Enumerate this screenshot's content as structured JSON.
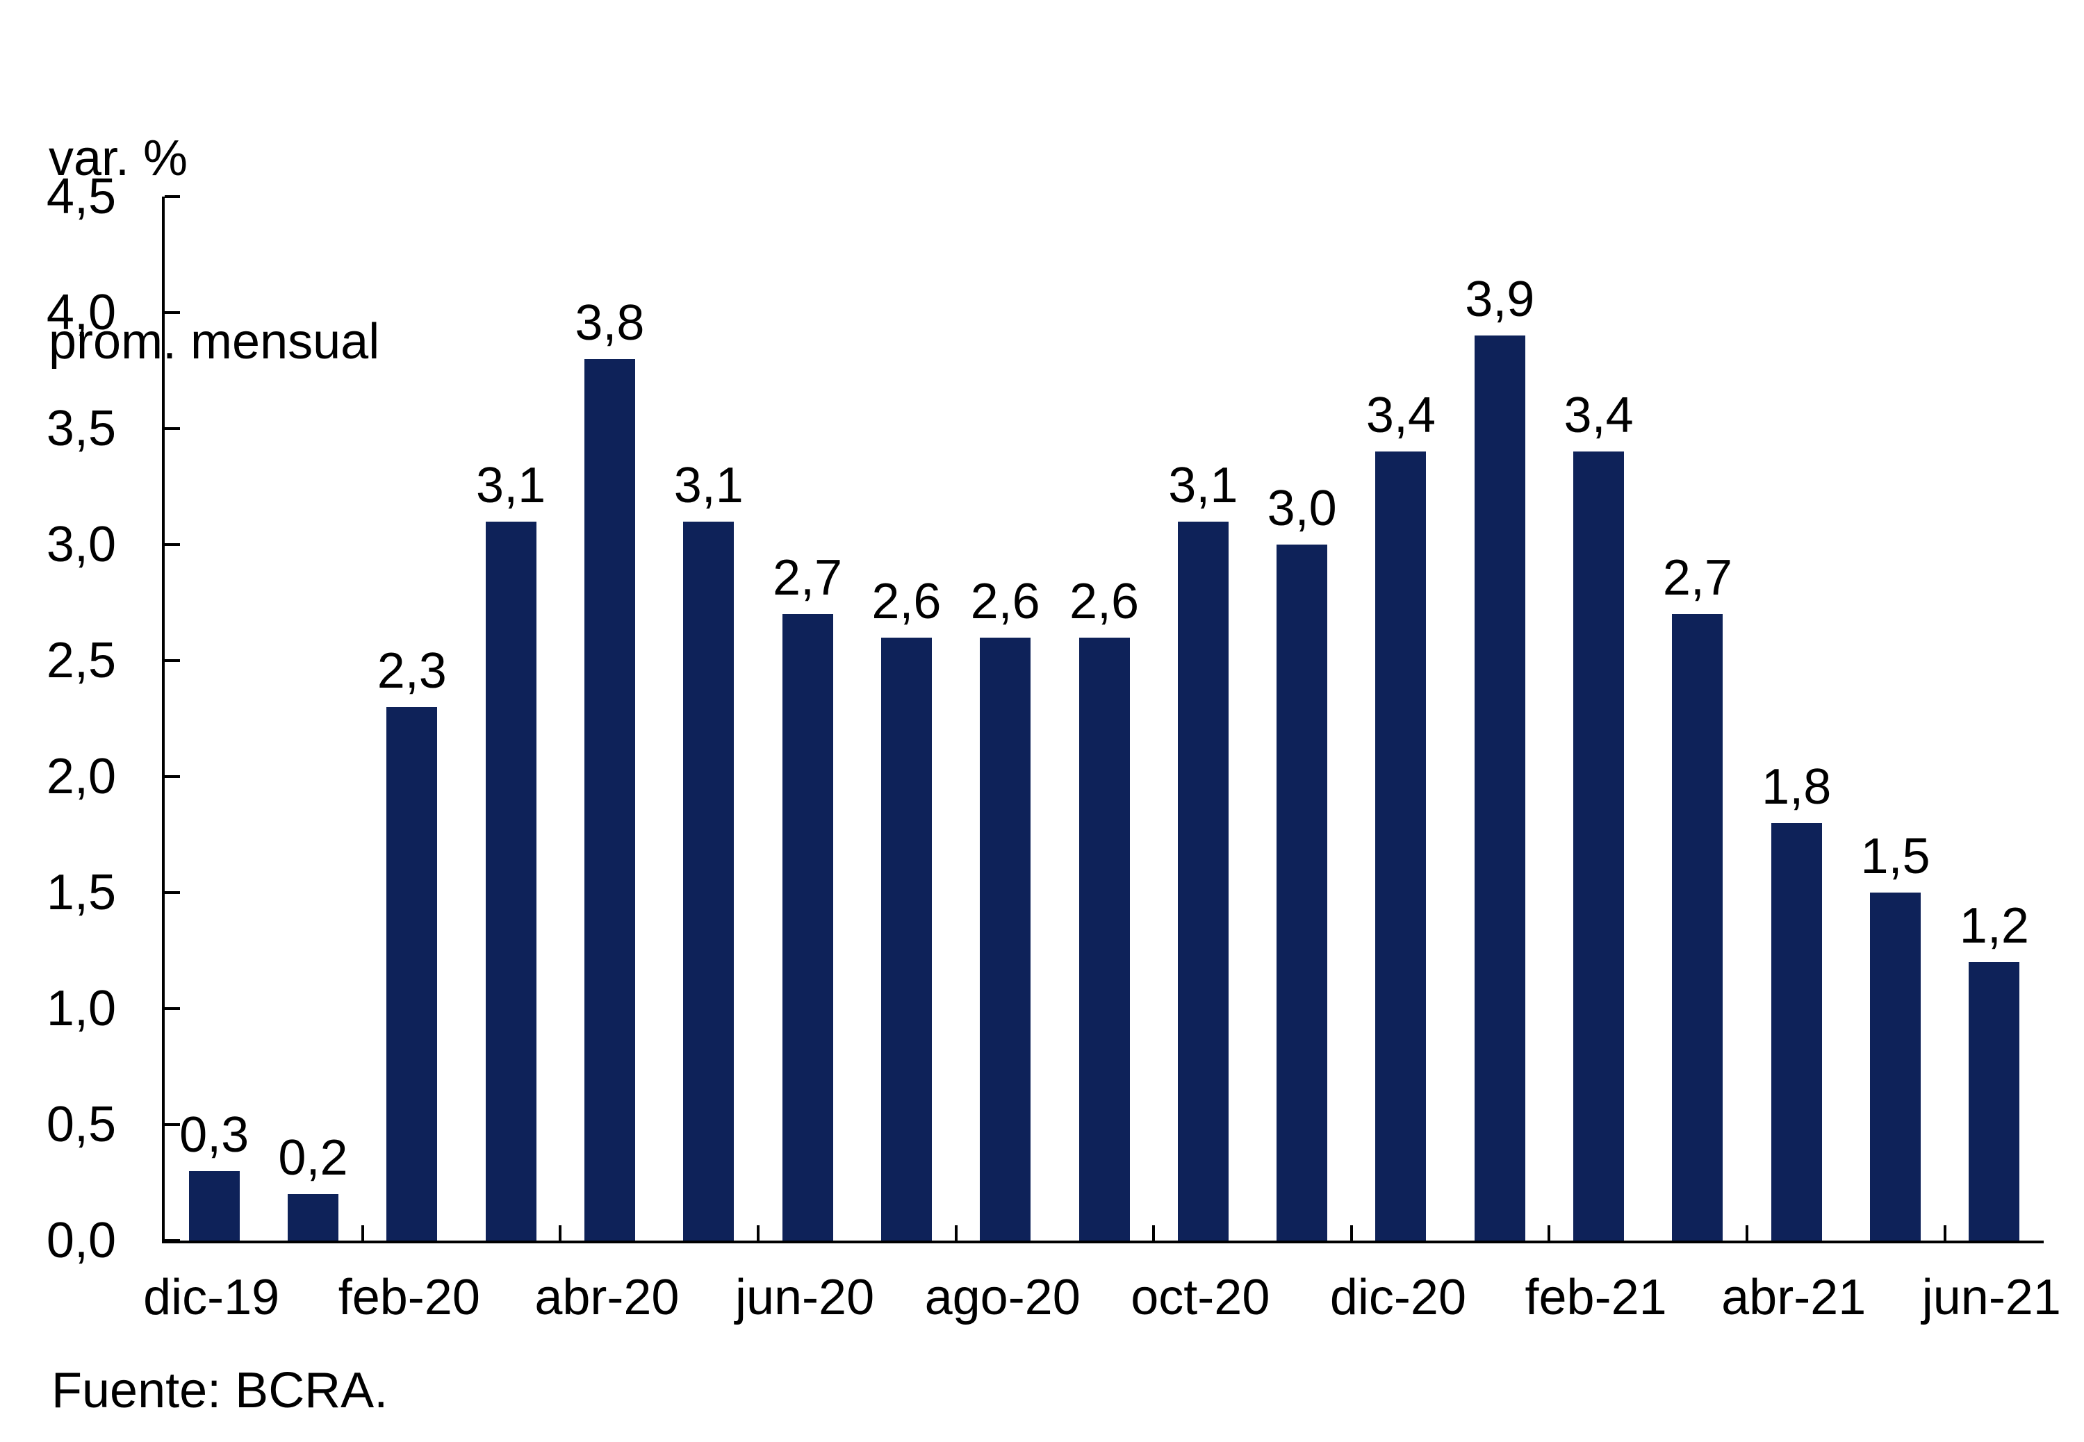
{
  "source": "Fuente: BCRA.",
  "colors": {
    "bar": "#0e2259",
    "axis": "#000000",
    "text": "#000000",
    "background": "#ffffff"
  },
  "chart_data": {
    "type": "bar",
    "title": "",
    "y_axis": {
      "title_lines": [
        "var. %",
        "prom. mensual"
      ],
      "min": 0,
      "max": 4.5,
      "step": 0.5,
      "tick_labels": [
        "0,0",
        "0,5",
        "1,0",
        "1,5",
        "2,0",
        "2,5",
        "3,0",
        "3,5",
        "4,0",
        "4,5"
      ]
    },
    "x_axis": {
      "tick_labels": [
        "dic-19",
        "feb-20",
        "abr-20",
        "jun-20",
        "ago-20",
        "oct-20",
        "dic-20",
        "feb-21",
        "abr-21",
        "jun-21"
      ],
      "label_every_n_bars": 2,
      "first_labeled_bar_index": 0
    },
    "n_bars": 19,
    "values": [
      0.3,
      0.2,
      2.3,
      3.1,
      3.8,
      3.1,
      2.7,
      2.6,
      2.6,
      2.6,
      3.1,
      3.0,
      3.4,
      3.9,
      3.4,
      2.7,
      1.8,
      1.5,
      1.2
    ],
    "bar_labels": [
      "0,3",
      "0,2",
      "2,3",
      "3,1",
      "3,8",
      "3,1",
      "2,7",
      "2,6",
      "2,6",
      "2,6",
      "3,1",
      "3,0",
      "3,4",
      "3,9",
      "3,4",
      "2,7",
      "1,8",
      "1,5",
      "1,2"
    ],
    "grid": false,
    "legend": "none"
  }
}
